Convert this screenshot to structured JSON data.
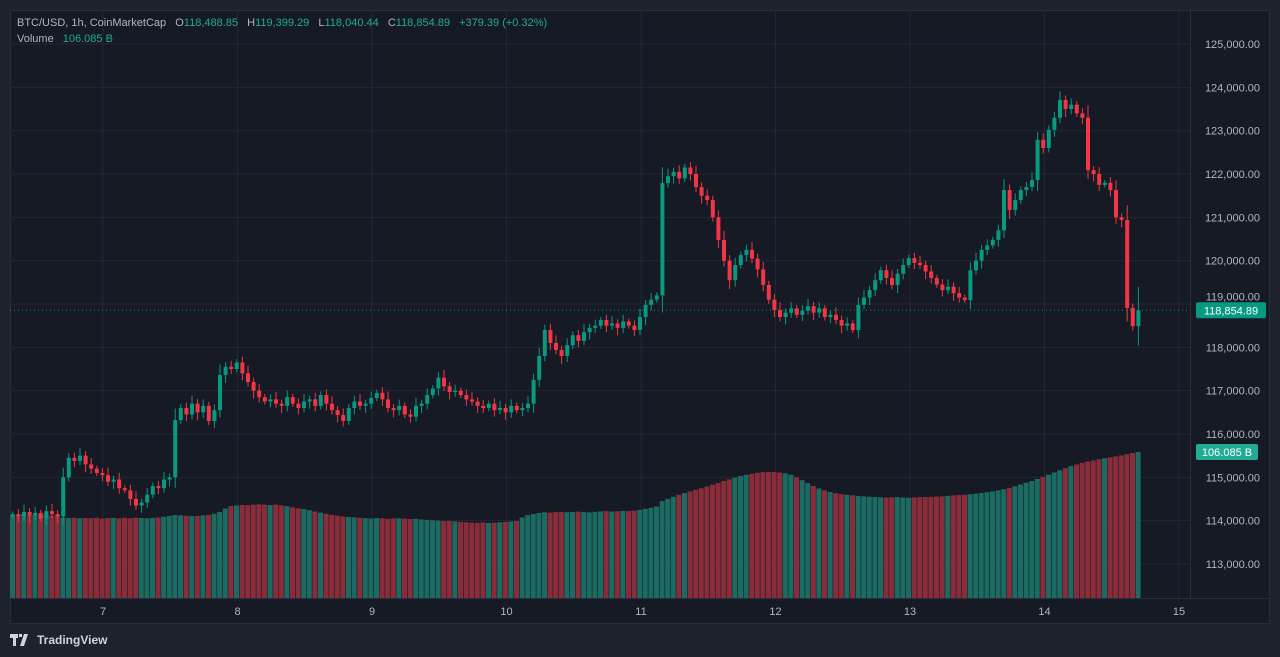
{
  "header": {
    "symbol": "BTC/USD, 1h, CoinMarketCap",
    "open_label": "O",
    "open": "118,488.85",
    "high_label": "H",
    "high": "119,399.29",
    "low_label": "L",
    "low": "118,040.44",
    "close_label": "C",
    "close": "118,854.89",
    "change": "+379.39 (+0.32%)",
    "volume_label": "Volume",
    "volume": "106.085 B"
  },
  "brand": "TradingView",
  "colors": {
    "up": "#089981",
    "down": "#f23645",
    "background": "#161a25",
    "grid": "#232734",
    "axis_text": "#b2b5be"
  },
  "chart_data": {
    "type": "candlestick",
    "interval": "1h",
    "x_tick_labels": [
      "7",
      "8",
      "9",
      "10",
      "11",
      "12",
      "13",
      "14",
      "15"
    ],
    "y_tick_labels": [
      "113,000.00",
      "114,000.00",
      "115,000.00",
      "116,000.00",
      "117,000.00",
      "118,000.00",
      "119,000.00",
      "120,000.00",
      "121,000.00",
      "122,000.00",
      "123,000.00",
      "124,000.00",
      "125,000.00"
    ],
    "y_ticks": [
      113000,
      114000,
      115000,
      116000,
      117000,
      118000,
      119000,
      120000,
      121000,
      122000,
      123000,
      124000,
      125000
    ],
    "ylim": [
      112250,
      125800
    ],
    "grid": true,
    "last_price_label": "118,854.89",
    "last_volume_label": "106.085 B",
    "last_candle": {
      "open": 118488.85,
      "high": 119399.29,
      "low": 118040.44,
      "close": 118854.89
    },
    "closes": [
      114150,
      114100,
      114200,
      114120,
      114180,
      114050,
      114220,
      114150,
      114100,
      115000,
      115450,
      115380,
      115500,
      115300,
      115200,
      115100,
      115050,
      114900,
      114950,
      114750,
      114700,
      114500,
      114350,
      114420,
      114600,
      114800,
      114750,
      114950,
      115000,
      116320,
      116600,
      116450,
      116700,
      116500,
      116650,
      116300,
      116550,
      117360,
      117550,
      117500,
      117650,
      117400,
      117200,
      117000,
      116850,
      116750,
      116800,
      116700,
      116650,
      116850,
      116700,
      116600,
      116750,
      116800,
      116650,
      116900,
      116700,
      116550,
      116440,
      116300,
      116600,
      116750,
      116650,
      116700,
      116830,
      116950,
      116800,
      116600,
      116550,
      116650,
      116450,
      116400,
      116650,
      116700,
      116900,
      117050,
      117300,
      117100,
      116970,
      117000,
      116900,
      116800,
      116750,
      116650,
      116600,
      116700,
      116550,
      116600,
      116500,
      116650,
      116550,
      116600,
      116700,
      117250,
      117800,
      118400,
      118100,
      117940,
      117800,
      118050,
      118280,
      118150,
      118350,
      118450,
      118500,
      118630,
      118500,
      118550,
      118450,
      118600,
      118500,
      118400,
      118700,
      118980,
      119100,
      119200,
      121790,
      121950,
      122050,
      121900,
      122150,
      122000,
      121700,
      121500,
      121400,
      121000,
      120480,
      120000,
      119550,
      119900,
      120130,
      120250,
      120050,
      119800,
      119440,
      119100,
      118860,
      118700,
      118800,
      118900,
      118750,
      118850,
      118950,
      118800,
      118900,
      118700,
      118750,
      118630,
      118500,
      118550,
      118400,
      118980,
      119150,
      119320,
      119550,
      119780,
      119600,
      119440,
      119700,
      119900,
      120060,
      119950,
      119900,
      119750,
      119600,
      119450,
      119320,
      119400,
      119250,
      119150,
      119090,
      119780,
      120000,
      120250,
      120350,
      120480,
      120700,
      121630,
      121170,
      121400,
      121630,
      121700,
      121860,
      122790,
      122600,
      123020,
      123300,
      123710,
      123500,
      123600,
      123400,
      123300,
      122090,
      122000,
      121750,
      121800,
      121630,
      121000,
      120940,
      118910,
      118488.85,
      118854.89
    ],
    "volume_unit": "B",
    "volumes": [
      60.5,
      60.1,
      60.8,
      59.9,
      60.3,
      60.0,
      60.6,
      59.8,
      60.2,
      58.4,
      58.1,
      58.3,
      57.9,
      58.2,
      58.0,
      58.3,
      57.8,
      58.1,
      58.2,
      57.9,
      58.3,
      58.0,
      58.4,
      58.1,
      57.9,
      58.2,
      58.5,
      59.0,
      59.6,
      60.3,
      60.1,
      59.8,
      59.5,
      59.7,
      60.0,
      60.4,
      61.2,
      62.5,
      65.0,
      66.8,
      67.2,
      67.6,
      67.4,
      67.9,
      68.0,
      67.8,
      67.5,
      67.9,
      67.3,
      66.8,
      65.9,
      65.2,
      64.6,
      63.8,
      62.9,
      62.0,
      61.2,
      60.5,
      59.8,
      59.2,
      58.9,
      58.6,
      58.3,
      58.0,
      57.8,
      58.1,
      57.9,
      57.6,
      57.8,
      58.0,
      57.7,
      57.4,
      57.6,
      57.1,
      56.8,
      56.5,
      56.2,
      55.9,
      56.1,
      55.7,
      55.3,
      55.0,
      54.8,
      54.6,
      54.9,
      54.5,
      54.7,
      55.0,
      55.3,
      55.6,
      56.0,
      58.5,
      60.2,
      61.0,
      61.8,
      62.3,
      62.0,
      62.4,
      62.6,
      62.3,
      62.5,
      62.8,
      62.4,
      62.2,
      62.6,
      62.9,
      63.1,
      62.8,
      63.0,
      63.3,
      63.1,
      63.5,
      64.0,
      64.8,
      65.5,
      66.5,
      70.5,
      72.0,
      73.5,
      75.0,
      76.2,
      77.5,
      78.6,
      79.8,
      81.0,
      82.3,
      83.5,
      85.0,
      86.2,
      87.5,
      88.6,
      89.5,
      90.3,
      91.0,
      91.4,
      91.6,
      91.5,
      91.2,
      90.6,
      89.5,
      87.8,
      85.6,
      83.5,
      81.4,
      79.6,
      78.2,
      77.0,
      76.1,
      75.5,
      75.0,
      74.6,
      74.2,
      73.9,
      73.6,
      73.4,
      73.2,
      73.0,
      73.1,
      73.3,
      73.0,
      72.8,
      73.0,
      73.2,
      73.4,
      73.5,
      73.7,
      73.9,
      74.2,
      74.5,
      74.8,
      75.0,
      75.4,
      75.8,
      76.3,
      76.9,
      77.5,
      78.2,
      79.0,
      80.0,
      81.2,
      82.5,
      83.8,
      85.0,
      86.5,
      88.0,
      89.6,
      91.2,
      92.8,
      94.3,
      95.8,
      97.0,
      98.2,
      99.2,
      100.0,
      100.8,
      101.5,
      102.2,
      102.8,
      103.6,
      104.5,
      105.3,
      106.085
    ]
  }
}
